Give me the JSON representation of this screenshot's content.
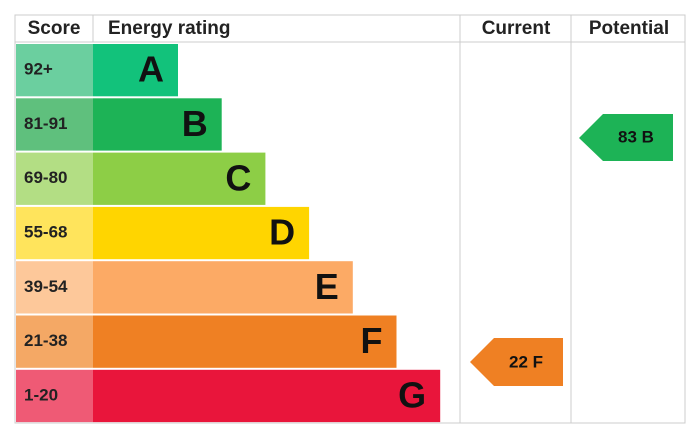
{
  "header": {
    "score": "Score",
    "rating": "Energy rating",
    "current": "Current",
    "potential": "Potential"
  },
  "bands": [
    {
      "score": "92+",
      "letter": "A",
      "color": "#12c27b",
      "score_color": "#6bcf9f"
    },
    {
      "score": "81-91",
      "letter": "B",
      "color": "#1db356",
      "score_color": "#5fc07d"
    },
    {
      "score": "69-80",
      "letter": "C",
      "color": "#8dce46",
      "score_color": "#b3de84"
    },
    {
      "score": "55-68",
      "letter": "D",
      "color": "#ffd500",
      "score_color": "#ffe45c"
    },
    {
      "score": "39-54",
      "letter": "E",
      "color": "#fcaa65",
      "score_color": "#fdc89a"
    },
    {
      "score": "21-38",
      "letter": "F",
      "color": "#ef8023",
      "score_color": "#f4a865"
    },
    {
      "score": "1-20",
      "letter": "G",
      "color": "#e9153b",
      "score_color": "#ef5a75"
    }
  ],
  "current": {
    "label": "22 F",
    "color": "#ef8023"
  },
  "potential": {
    "label": "83 B",
    "color": "#1db356"
  }
}
